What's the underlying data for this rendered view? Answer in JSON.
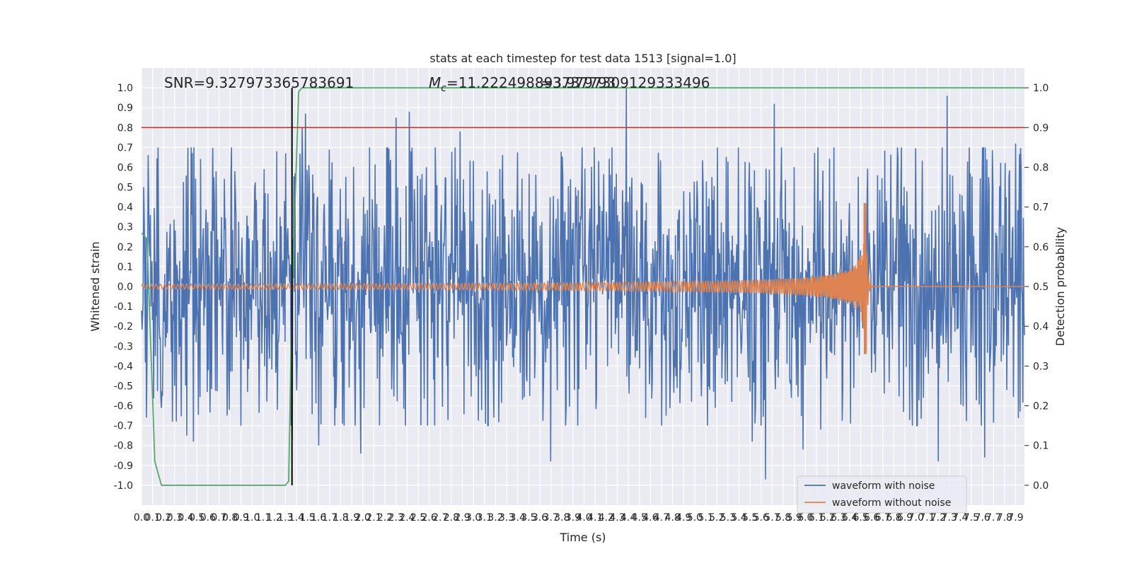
{
  "chart_data": {
    "type": "line",
    "title": "stats at each timestep for test data 1513 [signal=1.0]",
    "xlabel": "Time (s)",
    "ylabel_left": "Whitened strain",
    "ylabel_right": "Detection probability",
    "xlim": [
      0.0,
      7.98
    ],
    "ylim_left": [
      -1.1,
      1.1
    ],
    "ylim_right": [
      -0.05,
      1.05
    ],
    "x_ticks": [
      "0.0",
      "0.1",
      "0.2",
      "0.3",
      "0.4",
      "0.5",
      "0.6",
      "0.7",
      "0.8",
      "0.9",
      "1.0",
      "1.1",
      "1.2",
      "1.3",
      "1.4",
      "1.5",
      "1.6",
      "1.7",
      "1.8",
      "1.9",
      "2.0",
      "2.1",
      "2.2",
      "2.3",
      "2.4",
      "2.5",
      "2.6",
      "2.7",
      "2.8",
      "2.9",
      "3.0",
      "3.1",
      "3.2",
      "3.3",
      "3.4",
      "3.5",
      "3.6",
      "3.7",
      "3.8",
      "3.9",
      "4.0",
      "4.1",
      "4.2",
      "4.3",
      "4.4",
      "4.5",
      "4.6",
      "4.7",
      "4.8",
      "4.9",
      "5.0",
      "5.1",
      "5.2",
      "5.3",
      "5.4",
      "5.5",
      "5.6",
      "5.7",
      "5.8",
      "5.9",
      "6.0",
      "6.1",
      "6.2",
      "6.3",
      "6.4",
      "6.5",
      "6.6",
      "6.7",
      "6.8",
      "6.9",
      "7.0",
      "7.1",
      "7.2",
      "7.3",
      "7.4",
      "7.5",
      "7.6",
      "7.7",
      "7.8",
      "7.9"
    ],
    "y_ticks_left": [
      "-1.0",
      "-0.9",
      "-0.8",
      "-0.7",
      "-0.6",
      "-0.5",
      "-0.4",
      "-0.3",
      "-0.2",
      "-0.1",
      "0.0",
      "0.1",
      "0.2",
      "0.3",
      "0.4",
      "0.5",
      "0.6",
      "0.7",
      "0.8",
      "0.9",
      "1.0"
    ],
    "y_ticks_right": [
      "0.0",
      "0.1",
      "0.2",
      "0.3",
      "0.4",
      "0.5",
      "0.6",
      "0.7",
      "0.8",
      "0.9",
      "1.0"
    ],
    "annotations": {
      "snr": "SNR=9.327973365783691",
      "mc": "=11.222498893737793",
      "mc_symbol": "M",
      "mc_sub": "c",
      "overlap": "=3.9797309129333496"
    },
    "threshold": {
      "value": 0.9,
      "axis": "right",
      "color": "#c0392b"
    },
    "detection_time": 1.36,
    "merger_time": 6.55,
    "series": [
      {
        "name": "waveform with noise",
        "axis": "left",
        "color": "#4c72b0",
        "noise_sigma": 0.3,
        "peaks": [
          {
            "x": 0.15,
            "y": 0.7
          },
          {
            "x": 0.19,
            "y": -0.55
          },
          {
            "x": 0.28,
            "y": -0.68
          },
          {
            "x": 0.41,
            "y": -0.75
          },
          {
            "x": 0.47,
            "y": -0.78
          },
          {
            "x": 0.45,
            "y": 0.7
          },
          {
            "x": 1.23,
            "y": -0.62
          },
          {
            "x": 1.36,
            "y": -0.77
          },
          {
            "x": 1.48,
            "y": 0.87
          },
          {
            "x": 1.45,
            "y": 0.8
          },
          {
            "x": 1.6,
            "y": -0.8
          },
          {
            "x": 1.98,
            "y": -0.84
          },
          {
            "x": 2.3,
            "y": 0.85
          },
          {
            "x": 2.42,
            "y": 0.88
          },
          {
            "x": 2.88,
            "y": 0.78
          },
          {
            "x": 3.7,
            "y": -0.88
          },
          {
            "x": 4.38,
            "y": 1.0
          },
          {
            "x": 5.52,
            "y": -0.78
          },
          {
            "x": 5.64,
            "y": -0.97
          },
          {
            "x": 5.72,
            "y": 0.92
          },
          {
            "x": 5.98,
            "y": -0.82
          },
          {
            "x": 6.14,
            "y": -0.72
          },
          {
            "x": 7.2,
            "y": -0.88
          },
          {
            "x": 7.28,
            "y": 0.96
          },
          {
            "x": 7.62,
            "y": -0.86
          },
          {
            "x": 7.9,
            "y": 0.72
          }
        ]
      },
      {
        "name": "waveform without noise",
        "axis": "left",
        "color": "#dd8452",
        "amplitude_start": 0.012,
        "amplitude_peak": 0.42,
        "amplitude_trough": -0.34,
        "cycles": 260
      },
      {
        "name": "",
        "axis": "right",
        "color": "#55a868",
        "points": [
          [
            0.0,
            0.635
          ],
          [
            0.05,
            0.62
          ],
          [
            0.12,
            0.06
          ],
          [
            0.18,
            0.0
          ],
          [
            1.3,
            0.0
          ],
          [
            1.33,
            0.01
          ],
          [
            1.36,
            0.47
          ],
          [
            1.42,
            0.99
          ],
          [
            1.45,
            1.0
          ],
          [
            7.98,
            1.0
          ]
        ]
      }
    ],
    "legend": {
      "placement": "lower-right",
      "entries": [
        "waveform with noise",
        "waveform without noise"
      ]
    },
    "grid": true,
    "background": "#eaeaf2"
  }
}
